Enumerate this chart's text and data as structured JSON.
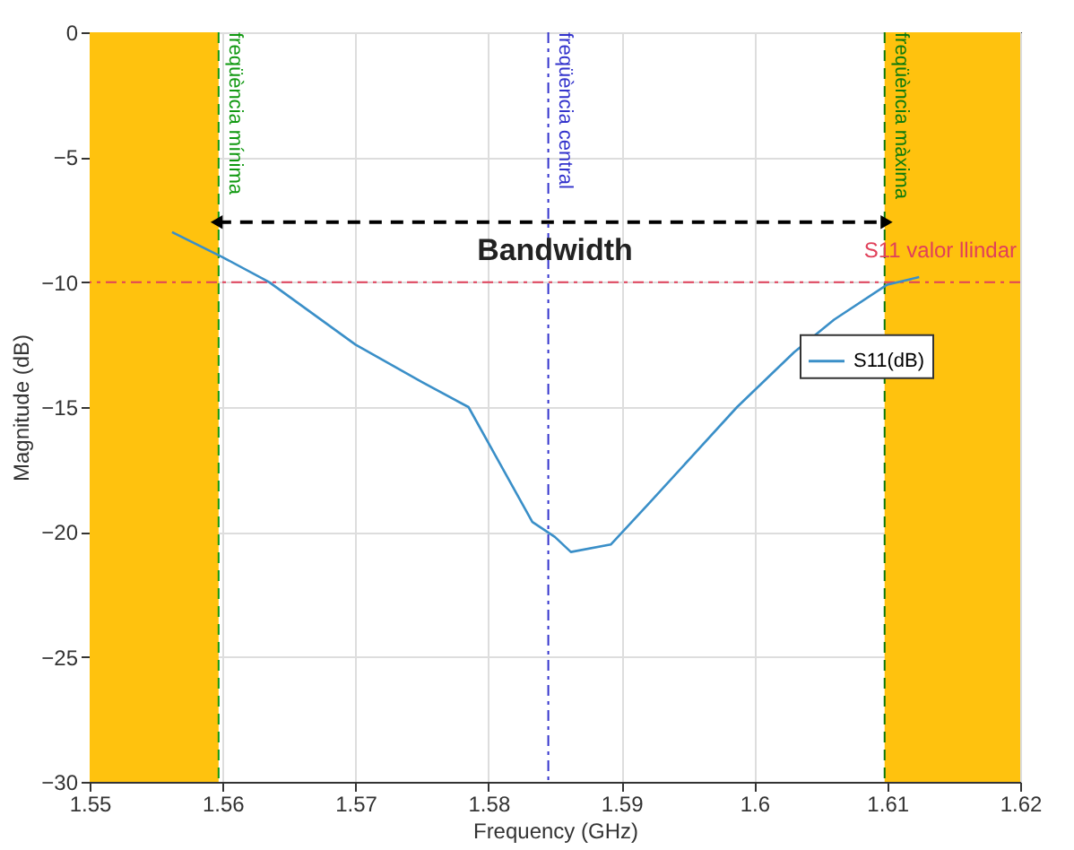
{
  "chart_data": {
    "type": "line",
    "xlabel": "Frequency (GHz)",
    "ylabel": "Magnitude (dB)",
    "x": [
      1.5562,
      1.56,
      1.5635,
      1.57,
      1.575,
      1.5785,
      1.5833,
      1.585,
      1.5862,
      1.5892,
      1.592,
      1.5987,
      1.603,
      1.606,
      1.61,
      1.6124
    ],
    "series": [
      {
        "name": "S11(dB)",
        "color": "#3a8fc8",
        "values": [
          -8.0,
          -9.0,
          -10.0,
          -12.5,
          -14.0,
          -15.0,
          -19.6,
          -20.2,
          -20.8,
          -20.5,
          -18.9,
          -15.0,
          -12.8,
          -11.5,
          -10.1,
          -9.8
        ]
      }
    ],
    "xlim": [
      1.55,
      1.62
    ],
    "ylim": [
      -30,
      0
    ],
    "xticks": [
      1.55,
      1.56,
      1.57,
      1.58,
      1.59,
      1.6,
      1.61,
      1.62
    ],
    "yticks": [
      -30,
      -25,
      -20,
      -15,
      -10,
      -5,
      0
    ],
    "bands": [
      {
        "axis": "x",
        "from": 1.55,
        "to": 1.5597,
        "color": "#ffc20e"
      },
      {
        "axis": "x",
        "from": 1.6098,
        "to": 1.62,
        "color": "#ffc20e"
      }
    ],
    "ref_lines": [
      {
        "axis": "x",
        "value": 1.5597,
        "label": "freqüència mínima",
        "color": "#119911",
        "line_style": "dashed"
      },
      {
        "axis": "x",
        "value": 1.5845,
        "label": "freqüència central",
        "color": "#3333cc",
        "line_style": "dashdot"
      },
      {
        "axis": "x",
        "value": 1.6098,
        "label": "freqüència màxima",
        "color": "#0d7a0d",
        "line_style": "dashed"
      },
      {
        "axis": "y",
        "value": -10,
        "label": "S11 valor llindar",
        "color": "#e0405a",
        "line_style": "dashdot"
      }
    ],
    "annotations": [
      {
        "text": "Bandwidth",
        "x": 1.585,
        "y": -7.6
      }
    ],
    "grid": true,
    "legend": "right",
    "line_style": "solid",
    "marker": "none"
  }
}
